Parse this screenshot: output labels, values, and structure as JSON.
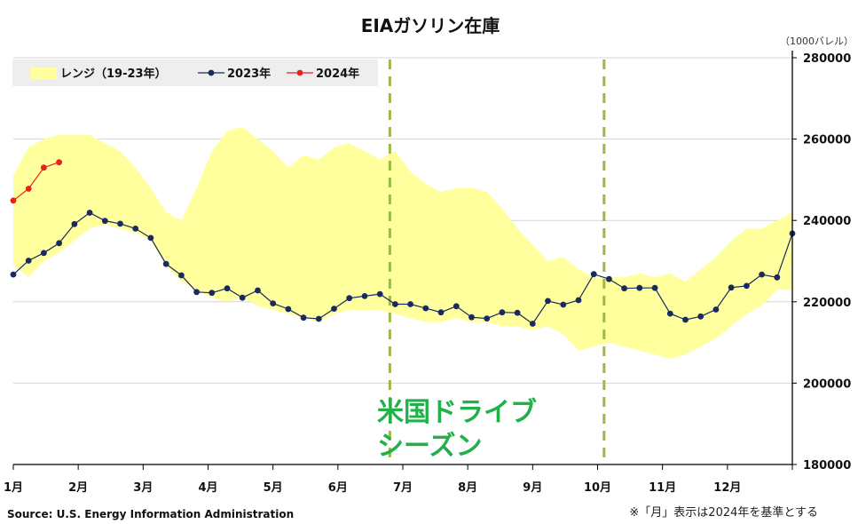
{
  "chart_data": {
    "type": "line",
    "title": "EIAガソリン在庫",
    "unit_label": "（1000バレル）",
    "months": [
      "1月",
      "2月",
      "3月",
      "4月",
      "5月",
      "6月",
      "7月",
      "8月",
      "9月",
      "10月",
      "11月",
      "12月"
    ],
    "ylim": [
      180000,
      280000
    ],
    "yticks": [
      "180000",
      "200000",
      "220000",
      "240000",
      "260000",
      "280000"
    ],
    "grid": true,
    "legend_position": "top-left",
    "legend": {
      "range": "レンジ（19-23年）",
      "s2023": "2023年",
      "s2024": "2024年"
    },
    "colors": {
      "range": "#ffff9e",
      "s2023": "#1a2a5e",
      "s2024": "#e8201e",
      "marker_line": "#9ab847",
      "annotation": "#22b04b"
    },
    "range_upper": [
      251000,
      258000,
      260000,
      261000,
      261000,
      261000,
      259000,
      257000,
      253000,
      248000,
      242000,
      240000,
      248000,
      257000,
      262000,
      263000,
      260000,
      257000,
      253000,
      256000,
      255000,
      258000,
      259000,
      257000,
      255000,
      257000,
      252000,
      249000,
      247000,
      248000,
      248000,
      247000,
      243000,
      238000,
      234000,
      230000,
      231000,
      228000,
      226000,
      226000,
      226000,
      227000,
      226000,
      227000,
      225000,
      228000,
      231000,
      235000,
      238000,
      238000,
      240000,
      242000
    ],
    "range_lower": [
      229000,
      226000,
      230000,
      232000,
      235000,
      238000,
      239000,
      238000,
      237000,
      235000,
      229000,
      225000,
      223000,
      221000,
      220000,
      221000,
      219000,
      218000,
      217000,
      216000,
      215000,
      217000,
      218000,
      218000,
      218000,
      217000,
      216000,
      215000,
      215000,
      216000,
      215000,
      215000,
      214000,
      214000,
      213000,
      214000,
      212000,
      208000,
      209000,
      210000,
      209000,
      208000,
      207000,
      206000,
      207000,
      209000,
      211000,
      214000,
      217000,
      219000,
      223000,
      223000
    ],
    "series_2023": [
      226700,
      230100,
      232000,
      234400,
      239100,
      241900,
      239900,
      239200,
      238000,
      235700,
      229300,
      226500,
      222400,
      222200,
      223300,
      221000,
      222800,
      219600,
      218200,
      216100,
      215800,
      218300,
      220900,
      221400,
      221900,
      219400,
      219400,
      218400,
      217400,
      218900,
      216200,
      215900,
      217400,
      217300,
      214600,
      220200,
      219300,
      220400,
      226800,
      225600,
      223300,
      223400,
      223400,
      217100,
      215600,
      216400,
      218100,
      223500,
      223900,
      226700,
      226000,
      236800
    ],
    "series_2024": [
      244900,
      247800,
      253000,
      254300
    ],
    "season_marker_positions": [
      5.8,
      9.1
    ],
    "annotation": [
      "米国ドライブ",
      "シーズン"
    ],
    "source": "Source: U.S. Energy Information Administration",
    "note": "※「月」表示は2024年を基準とする"
  }
}
